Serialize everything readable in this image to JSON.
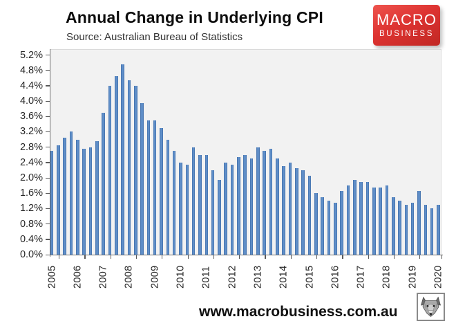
{
  "header": {
    "title": "Annual Change in Underlying CPI",
    "source": "Source: Australian Bureau of Statistics"
  },
  "branding": {
    "logo_line1": "MACRO",
    "logo_line2": "BUSINESS",
    "logo_color": "#dd3331",
    "logo_text_color": "#ffffff"
  },
  "footer": {
    "url": "www.macrobusiness.com.au",
    "logo_icon": "wolf-face-icon"
  },
  "chart_data": {
    "type": "bar",
    "title": "Annual Change in Underlying CPI",
    "subtitle": "Source: Australian Bureau of Statistics",
    "frequency": "quarterly",
    "unit": "%",
    "grid": false,
    "legend": false,
    "plot_bg": "#f2f2f2",
    "bar_color": "#4f81bd",
    "ylim": [
      0.0,
      5.6
    ],
    "y_tick_labels": [
      "5.2%",
      "4.8%",
      "4.4%",
      "4.0%",
      "3.6%",
      "3.2%",
      "2.8%",
      "2.4%",
      "2.0%",
      "1.6%",
      "1.2%",
      "0.8%",
      "0.4%",
      "0.0%"
    ],
    "x_year_labels": [
      "2005",
      "2006",
      "2007",
      "2008",
      "2009",
      "2010",
      "2011",
      "2012",
      "2013",
      "2014",
      "2015",
      "2016",
      "2017",
      "2018",
      "2019",
      "2020"
    ],
    "quarters": [
      "2005-Q1",
      "2005-Q2",
      "2005-Q3",
      "2005-Q4",
      "2006-Q1",
      "2006-Q2",
      "2006-Q3",
      "2006-Q4",
      "2007-Q1",
      "2007-Q2",
      "2007-Q3",
      "2007-Q4",
      "2008-Q1",
      "2008-Q2",
      "2008-Q3",
      "2008-Q4",
      "2009-Q1",
      "2009-Q2",
      "2009-Q3",
      "2009-Q4",
      "2010-Q1",
      "2010-Q2",
      "2010-Q3",
      "2010-Q4",
      "2011-Q1",
      "2011-Q2",
      "2011-Q3",
      "2011-Q4",
      "2012-Q1",
      "2012-Q2",
      "2012-Q3",
      "2012-Q4",
      "2013-Q1",
      "2013-Q2",
      "2013-Q3",
      "2013-Q4",
      "2014-Q1",
      "2014-Q2",
      "2014-Q3",
      "2014-Q4",
      "2015-Q1",
      "2015-Q2",
      "2015-Q3",
      "2015-Q4",
      "2016-Q1",
      "2016-Q2",
      "2016-Q3",
      "2016-Q4",
      "2017-Q1",
      "2017-Q2",
      "2017-Q3",
      "2017-Q4",
      "2018-Q1",
      "2018-Q2",
      "2018-Q3",
      "2018-Q4",
      "2019-Q1",
      "2019-Q2",
      "2019-Q3",
      "2019-Q4",
      "2020-Q1"
    ],
    "values": [
      2.7,
      2.85,
      3.05,
      3.2,
      3.0,
      2.75,
      2.8,
      2.95,
      3.7,
      4.4,
      4.65,
      4.95,
      4.55,
      4.4,
      3.95,
      3.5,
      3.5,
      3.3,
      3.0,
      2.7,
      2.4,
      2.35,
      2.8,
      2.6,
      2.6,
      2.2,
      1.95,
      2.4,
      2.35,
      2.55,
      2.6,
      2.5,
      2.8,
      2.7,
      2.75,
      2.5,
      2.3,
      2.4,
      2.25,
      2.2,
      2.05,
      1.6,
      1.5,
      1.4,
      1.35,
      1.65,
      1.8,
      1.95,
      1.9,
      1.9,
      1.75,
      1.75,
      1.8,
      1.5,
      1.4,
      1.3,
      1.35,
      1.65,
      1.3,
      1.2,
      1.3
    ]
  }
}
